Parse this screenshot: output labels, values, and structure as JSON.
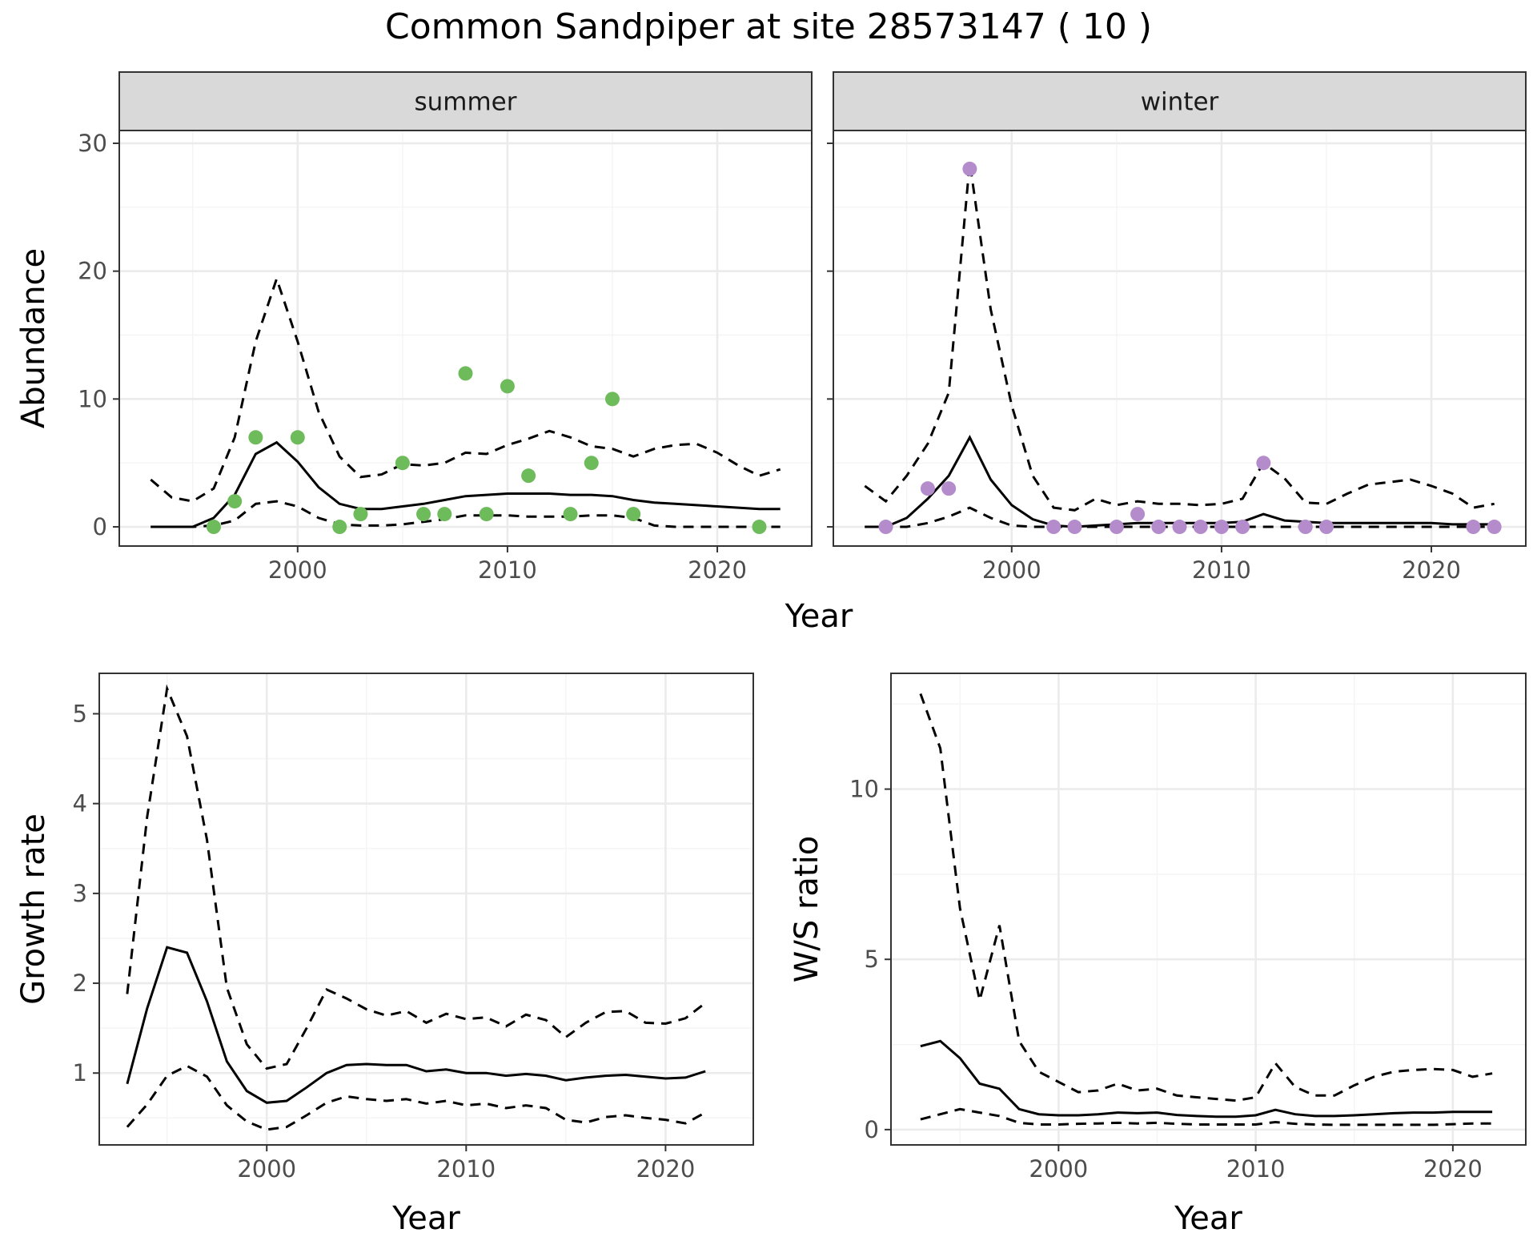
{
  "title": "Common Sandpiper at site 28573147 ( 10 )",
  "chart_data": [
    {
      "id": "summer",
      "type": "line",
      "strip": "summer",
      "ylabel": "Abundance",
      "xlabel": "Year",
      "xlim": [
        1991.5,
        2024.5
      ],
      "ylim": [
        -1.5,
        31
      ],
      "x_ticks": [
        2000,
        2010,
        2020
      ],
      "x_tick_labels": [
        "2000",
        "2010",
        "2020"
      ],
      "y_ticks": [
        0,
        10,
        20,
        30
      ],
      "y_tick_labels": [
        "0",
        "10",
        "20",
        "30"
      ],
      "point_color": "#6dbb5a",
      "x": [
        1993,
        1994,
        1995,
        1996,
        1997,
        1998,
        1999,
        2000,
        2001,
        2002,
        2003,
        2004,
        2005,
        2006,
        2007,
        2008,
        2009,
        2010,
        2011,
        2012,
        2013,
        2014,
        2015,
        2016,
        2017,
        2018,
        2019,
        2020,
        2021,
        2022,
        2023
      ],
      "mean": [
        0,
        0,
        0,
        0.7,
        2.5,
        5.7,
        6.6,
        5.1,
        3.1,
        1.8,
        1.4,
        1.4,
        1.6,
        1.8,
        2.1,
        2.4,
        2.5,
        2.6,
        2.6,
        2.6,
        2.5,
        2.5,
        2.4,
        2.1,
        1.9,
        1.8,
        1.7,
        1.6,
        1.5,
        1.4,
        1.4
      ],
      "lower": [
        0,
        0,
        0,
        0.1,
        0.5,
        1.8,
        2.0,
        1.6,
        0.7,
        0.2,
        0.1,
        0.1,
        0.2,
        0.4,
        0.6,
        0.9,
        0.9,
        0.9,
        0.8,
        0.8,
        0.8,
        0.9,
        0.9,
        0.7,
        0.1,
        0,
        0,
        0,
        0,
        0,
        0
      ],
      "upper": [
        3.7,
        2.3,
        2.0,
        3.0,
        7.0,
        14.5,
        19.4,
        14.5,
        9.0,
        5.5,
        3.9,
        4.1,
        4.9,
        4.8,
        5.0,
        5.8,
        5.7,
        6.4,
        6.9,
        7.5,
        7.0,
        6.3,
        6.1,
        5.5,
        6.1,
        6.4,
        6.5,
        5.8,
        4.8,
        4.0,
        4.5
      ],
      "points": [
        [
          1996,
          0
        ],
        [
          1997,
          2
        ],
        [
          1998,
          7
        ],
        [
          2000,
          7
        ],
        [
          2002,
          0
        ],
        [
          2003,
          1
        ],
        [
          2005,
          5
        ],
        [
          2006,
          1
        ],
        [
          2007,
          1
        ],
        [
          2008,
          12
        ],
        [
          2009,
          1
        ],
        [
          2010,
          11
        ],
        [
          2011,
          4
        ],
        [
          2013,
          1
        ],
        [
          2014,
          5
        ],
        [
          2015,
          10
        ],
        [
          2016,
          1
        ],
        [
          2022,
          0
        ]
      ]
    },
    {
      "id": "winter",
      "type": "line",
      "strip": "winter",
      "ylabel": "",
      "xlabel": "Year",
      "xlim": [
        1991.5,
        2024.5
      ],
      "ylim": [
        -1.5,
        31
      ],
      "x_ticks": [
        2000,
        2010,
        2020
      ],
      "x_tick_labels": [
        "2000",
        "2010",
        "2020"
      ],
      "y_ticks": [
        0,
        10,
        20,
        30
      ],
      "y_tick_labels": [],
      "point_color": "#b48ccc",
      "x": [
        1993,
        1994,
        1995,
        1996,
        1997,
        1998,
        1999,
        2000,
        2001,
        2002,
        2003,
        2004,
        2005,
        2006,
        2007,
        2008,
        2009,
        2010,
        2011,
        2012,
        2013,
        2014,
        2015,
        2016,
        2017,
        2018,
        2019,
        2020,
        2021,
        2022,
        2023
      ],
      "mean": [
        0,
        0,
        0.7,
        2.2,
        4.0,
        7.0,
        3.7,
        1.7,
        0.6,
        0.1,
        0,
        0.1,
        0.2,
        0.3,
        0.3,
        0.3,
        0.3,
        0.3,
        0.4,
        1.0,
        0.5,
        0.4,
        0.3,
        0.3,
        0.3,
        0.3,
        0.3,
        0.3,
        0.2,
        0.2,
        0.2
      ],
      "lower": [
        0,
        0,
        0,
        0.3,
        0.8,
        1.5,
        0.7,
        0.1,
        0,
        0,
        0,
        0,
        0,
        0,
        0,
        0,
        0,
        0,
        0,
        0,
        0,
        0,
        0,
        0,
        0,
        0,
        0,
        0,
        0,
        0,
        0
      ],
      "upper": [
        3.2,
        2.0,
        4.0,
        6.5,
        10.5,
        28.5,
        17.0,
        9.5,
        4.0,
        1.5,
        1.3,
        2.2,
        1.7,
        2.0,
        1.8,
        1.8,
        1.7,
        1.8,
        2.2,
        5.0,
        3.8,
        1.9,
        1.8,
        2.6,
        3.3,
        3.5,
        3.7,
        3.2,
        2.6,
        1.5,
        1.8
      ],
      "points": [
        [
          1994,
          0
        ],
        [
          1996,
          3
        ],
        [
          1997,
          3
        ],
        [
          1998,
          28
        ],
        [
          2002,
          0
        ],
        [
          2003,
          0
        ],
        [
          2005,
          0
        ],
        [
          2006,
          1
        ],
        [
          2007,
          0
        ],
        [
          2008,
          0
        ],
        [
          2009,
          0
        ],
        [
          2010,
          0
        ],
        [
          2011,
          0
        ],
        [
          2012,
          5
        ],
        [
          2014,
          0
        ],
        [
          2015,
          0
        ],
        [
          2022,
          0
        ],
        [
          2023,
          0
        ]
      ]
    },
    {
      "id": "growth",
      "type": "line",
      "ylabel": "Growth rate",
      "xlabel": "Year",
      "xlim": [
        1991.6,
        2024.4
      ],
      "ylim": [
        0.2,
        5.45
      ],
      "x_ticks": [
        2000,
        2010,
        2020
      ],
      "x_tick_labels": [
        "2000",
        "2010",
        "2020"
      ],
      "y_ticks": [
        1,
        2,
        3,
        4,
        5
      ],
      "y_tick_labels": [
        "1",
        "2",
        "3",
        "4",
        "5"
      ],
      "x": [
        1993,
        1994,
        1995,
        1996,
        1997,
        1998,
        1999,
        2000,
        2001,
        2002,
        2003,
        2004,
        2005,
        2006,
        2007,
        2008,
        2009,
        2010,
        2011,
        2012,
        2013,
        2014,
        2015,
        2016,
        2017,
        2018,
        2019,
        2020,
        2021,
        2022
      ],
      "mean": [
        0.88,
        1.72,
        2.4,
        2.34,
        1.8,
        1.13,
        0.8,
        0.67,
        0.69,
        0.84,
        1.0,
        1.09,
        1.1,
        1.09,
        1.09,
        1.02,
        1.04,
        1.0,
        1.0,
        0.97,
        0.99,
        0.97,
        0.92,
        0.95,
        0.97,
        0.98,
        0.96,
        0.94,
        0.95,
        1.02
      ],
      "lower": [
        0.4,
        0.65,
        0.97,
        1.08,
        0.96,
        0.64,
        0.46,
        0.37,
        0.4,
        0.53,
        0.67,
        0.74,
        0.71,
        0.69,
        0.71,
        0.66,
        0.69,
        0.64,
        0.66,
        0.61,
        0.64,
        0.61,
        0.48,
        0.45,
        0.51,
        0.53,
        0.5,
        0.48,
        0.44,
        0.56
      ],
      "upper": [
        1.88,
        3.85,
        5.28,
        4.75,
        3.6,
        1.95,
        1.32,
        1.05,
        1.1,
        1.5,
        1.93,
        1.83,
        1.71,
        1.64,
        1.69,
        1.56,
        1.66,
        1.6,
        1.62,
        1.52,
        1.65,
        1.59,
        1.4,
        1.56,
        1.68,
        1.69,
        1.56,
        1.55,
        1.61,
        1.78
      ]
    },
    {
      "id": "ratio",
      "type": "line",
      "ylabel": "W/S ratio",
      "xlabel": "Year",
      "xlim": [
        1991.5,
        2023.7
      ],
      "ylim": [
        -0.45,
        13.4
      ],
      "x_ticks": [
        2000,
        2010,
        2020
      ],
      "x_tick_labels": [
        "2000",
        "2010",
        "2020"
      ],
      "y_ticks": [
        0,
        5,
        10
      ],
      "y_tick_labels": [
        "0",
        "5",
        "10"
      ],
      "x": [
        1993,
        1994,
        1995,
        1996,
        1997,
        1998,
        1999,
        2000,
        2001,
        2002,
        2003,
        2004,
        2005,
        2006,
        2007,
        2008,
        2009,
        2010,
        2011,
        2012,
        2013,
        2014,
        2015,
        2016,
        2017,
        2018,
        2019,
        2020,
        2021,
        2022
      ],
      "mean": [
        2.45,
        2.6,
        2.1,
        1.35,
        1.2,
        0.6,
        0.45,
        0.42,
        0.42,
        0.45,
        0.5,
        0.48,
        0.5,
        0.43,
        0.4,
        0.38,
        0.38,
        0.42,
        0.58,
        0.45,
        0.4,
        0.4,
        0.42,
        0.45,
        0.48,
        0.5,
        0.5,
        0.52,
        0.52,
        0.52
      ],
      "lower": [
        0.3,
        0.45,
        0.6,
        0.5,
        0.4,
        0.2,
        0.15,
        0.15,
        0.17,
        0.18,
        0.2,
        0.18,
        0.2,
        0.17,
        0.15,
        0.15,
        0.15,
        0.15,
        0.22,
        0.17,
        0.15,
        0.14,
        0.14,
        0.14,
        0.14,
        0.14,
        0.14,
        0.16,
        0.18,
        0.18
      ],
      "upper": [
        12.8,
        11.2,
        6.5,
        3.8,
        6.0,
        2.6,
        1.7,
        1.4,
        1.1,
        1.15,
        1.35,
        1.15,
        1.2,
        1.0,
        0.95,
        0.9,
        0.85,
        0.95,
        1.95,
        1.25,
        1.0,
        1.0,
        1.3,
        1.55,
        1.7,
        1.75,
        1.78,
        1.75,
        1.55,
        1.65
      ]
    }
  ]
}
